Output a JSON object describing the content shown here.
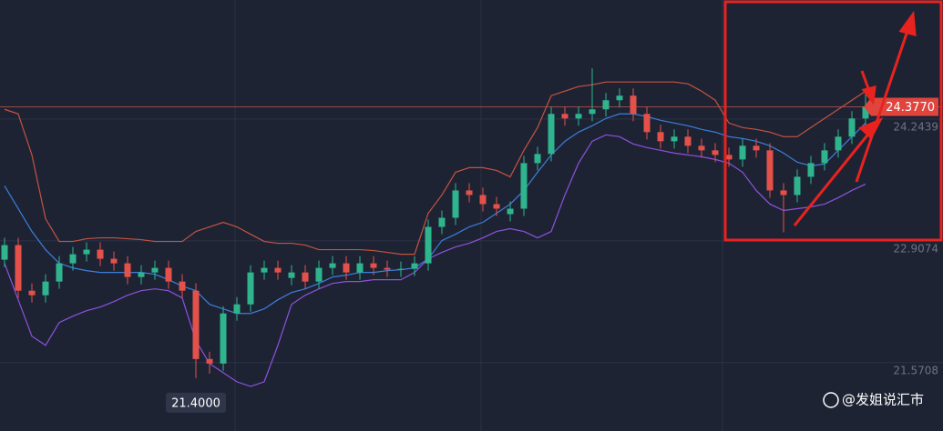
{
  "chart_data": {
    "type": "candlestick",
    "open": [
      22.7,
      22.86,
      22.36,
      22.31,
      22.46,
      22.66,
      22.76,
      22.81,
      22.71,
      22.66,
      22.51,
      22.56,
      22.61,
      22.46,
      22.36,
      21.61,
      21.56,
      22.11,
      22.21,
      22.56,
      22.61,
      22.5,
      22.56,
      22.46,
      22.61,
      22.66,
      22.56,
      22.66,
      22.61,
      22.59,
      22.6,
      22.66,
      23.06,
      23.16,
      23.46,
      23.41,
      23.31,
      23.2,
      23.26,
      23.76,
      23.86,
      24.3,
      24.25,
      24.3,
      24.35,
      24.45,
      24.5,
      24.3,
      24.1,
      24.0,
      24.05,
      23.95,
      23.9,
      23.85,
      23.8,
      23.95,
      23.9,
      23.46,
      23.41,
      23.61,
      23.76,
      23.9,
      24.05,
      24.25
    ],
    "high": [
      22.94,
      22.94,
      22.44,
      22.54,
      22.74,
      22.84,
      22.89,
      22.89,
      22.79,
      22.74,
      22.64,
      22.69,
      22.69,
      22.54,
      22.44,
      21.69,
      22.19,
      22.29,
      22.64,
      22.69,
      22.69,
      22.64,
      22.64,
      22.69,
      22.74,
      22.74,
      22.74,
      22.74,
      22.69,
      22.68,
      22.74,
      23.14,
      23.24,
      23.54,
      23.54,
      23.49,
      23.39,
      23.34,
      23.84,
      23.94,
      24.38,
      24.38,
      24.38,
      24.8,
      24.53,
      24.58,
      24.58,
      24.38,
      24.18,
      24.13,
      24.13,
      24.03,
      23.98,
      23.93,
      24.03,
      24.03,
      23.98,
      23.54,
      23.69,
      23.84,
      23.98,
      24.13,
      24.33,
      24.55
    ],
    "low": [
      22.62,
      22.28,
      22.23,
      22.23,
      22.38,
      22.58,
      22.68,
      22.63,
      22.58,
      22.43,
      22.43,
      22.48,
      22.38,
      22.28,
      21.4,
      21.45,
      21.48,
      22.03,
      22.13,
      22.48,
      22.48,
      22.42,
      22.38,
      22.38,
      22.53,
      22.48,
      22.48,
      22.53,
      22.51,
      22.51,
      22.52,
      22.58,
      22.98,
      23.08,
      23.33,
      23.23,
      23.18,
      23.12,
      23.18,
      23.68,
      23.78,
      24.17,
      24.17,
      24.22,
      24.27,
      24.37,
      24.22,
      24.02,
      23.92,
      23.92,
      23.87,
      23.82,
      23.77,
      23.72,
      23.72,
      23.82,
      23.38,
      23.0,
      23.33,
      23.53,
      23.68,
      23.82,
      23.97,
      24.17
    ],
    "close": [
      22.86,
      22.36,
      22.31,
      22.46,
      22.66,
      22.76,
      22.81,
      22.71,
      22.66,
      22.51,
      22.56,
      22.61,
      22.46,
      22.36,
      21.61,
      21.56,
      22.11,
      22.21,
      22.56,
      22.61,
      22.56,
      22.56,
      22.46,
      22.61,
      22.66,
      22.56,
      22.66,
      22.61,
      22.59,
      22.6,
      22.66,
      23.06,
      23.16,
      23.46,
      23.41,
      23.31,
      23.26,
      23.26,
      23.76,
      23.86,
      24.3,
      24.25,
      24.3,
      24.35,
      24.45,
      24.5,
      24.3,
      24.1,
      24.0,
      24.05,
      23.95,
      23.9,
      23.85,
      23.8,
      23.95,
      23.9,
      23.46,
      23.41,
      23.61,
      23.76,
      23.9,
      24.05,
      24.25,
      24.38
    ],
    "up_color": "#2fb58e",
    "down_color": "#e4514a",
    "series": [
      {
        "color": "#c4533f",
        "values": [
          24.35,
          24.3,
          23.85,
          23.15,
          22.9,
          22.9,
          22.93,
          22.94,
          22.94,
          22.93,
          22.92,
          22.9,
          22.9,
          22.9,
          23.01,
          23.06,
          23.11,
          23.06,
          22.98,
          22.9,
          22.88,
          22.88,
          22.86,
          22.81,
          22.81,
          22.81,
          22.81,
          22.8,
          22.78,
          22.76,
          22.76,
          23.21,
          23.41,
          23.66,
          23.71,
          23.71,
          23.68,
          23.61,
          23.9,
          24.15,
          24.5,
          24.55,
          24.6,
          24.62,
          24.65,
          24.65,
          24.65,
          24.65,
          24.65,
          24.65,
          24.63,
          24.55,
          24.45,
          24.2,
          24.15,
          24.13,
          24.1,
          24.05,
          24.05,
          24.15,
          24.25,
          24.35,
          24.45,
          24.55
        ]
      },
      {
        "color": "#3b7fd9",
        "values": [
          23.51,
          23.26,
          23.01,
          22.81,
          22.66,
          22.61,
          22.58,
          22.56,
          22.56,
          22.56,
          22.56,
          22.54,
          22.48,
          22.41,
          22.36,
          22.21,
          22.16,
          22.11,
          22.11,
          22.16,
          22.26,
          22.34,
          22.38,
          22.44,
          22.51,
          22.53,
          22.56,
          22.56,
          22.58,
          22.59,
          22.61,
          22.71,
          22.91,
          22.98,
          23.06,
          23.11,
          23.21,
          23.31,
          23.46,
          23.66,
          23.85,
          24.0,
          24.1,
          24.17,
          24.25,
          24.3,
          24.3,
          24.27,
          24.23,
          24.2,
          24.17,
          24.13,
          24.1,
          24.05,
          24.03,
          24.0,
          23.95,
          23.87,
          23.77,
          23.73,
          23.75,
          23.9,
          24.05,
          24.2
        ]
      },
      {
        "color": "#8d52dc",
        "values": [
          22.66,
          22.26,
          21.86,
          21.76,
          22.01,
          22.08,
          22.14,
          22.18,
          22.24,
          22.31,
          22.36,
          22.38,
          22.36,
          22.28,
          21.81,
          21.56,
          21.46,
          21.36,
          21.31,
          21.36,
          21.76,
          22.21,
          22.31,
          22.38,
          22.44,
          22.46,
          22.46,
          22.48,
          22.48,
          22.48,
          22.56,
          22.71,
          22.78,
          22.84,
          22.88,
          22.94,
          23.01,
          23.04,
          23.01,
          22.94,
          23.01,
          23.41,
          23.76,
          24.0,
          24.07,
          24.05,
          23.97,
          23.93,
          23.9,
          23.87,
          23.85,
          23.83,
          23.8,
          23.76,
          23.66,
          23.46,
          23.31,
          23.24,
          23.26,
          23.28,
          23.31,
          23.38,
          23.46,
          23.53
        ]
      }
    ],
    "ylim": [
      20.82,
      25.55
    ],
    "yticks": [
      24.2439,
      22.9074,
      21.5708
    ],
    "grid": true,
    "last_price": {
      "value": 24.377,
      "label": "24.3770"
    },
    "low_marker": {
      "value": 21.4,
      "label": "21.4000"
    },
    "watermark": "@发姐说汇市"
  }
}
